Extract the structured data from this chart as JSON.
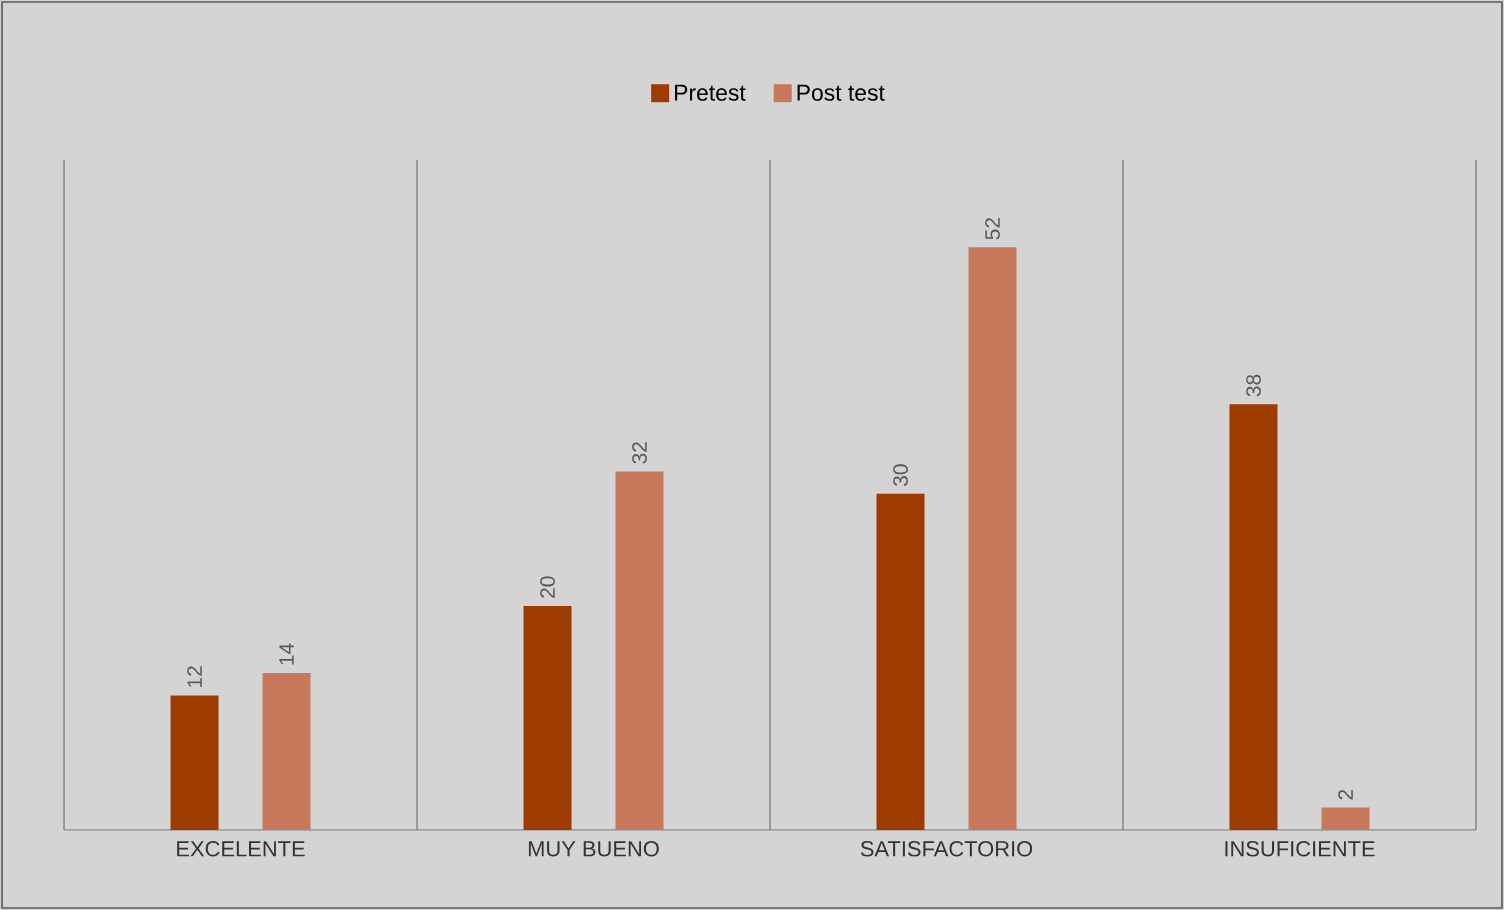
{
  "chart_data": {
    "type": "bar",
    "categories": [
      "EXCELENTE",
      "MUY BUENO",
      "SATISFACTORIO",
      "INSUFICIENTE"
    ],
    "series": [
      {
        "name": "Pretest",
        "color": "#9e3b00",
        "values": [
          12,
          20,
          30,
          38
        ]
      },
      {
        "name": "Post test",
        "color": "#c5785a",
        "values": [
          14,
          32,
          52,
          2
        ]
      }
    ],
    "data_labels": true,
    "legend": "top",
    "grid": "x"
  }
}
